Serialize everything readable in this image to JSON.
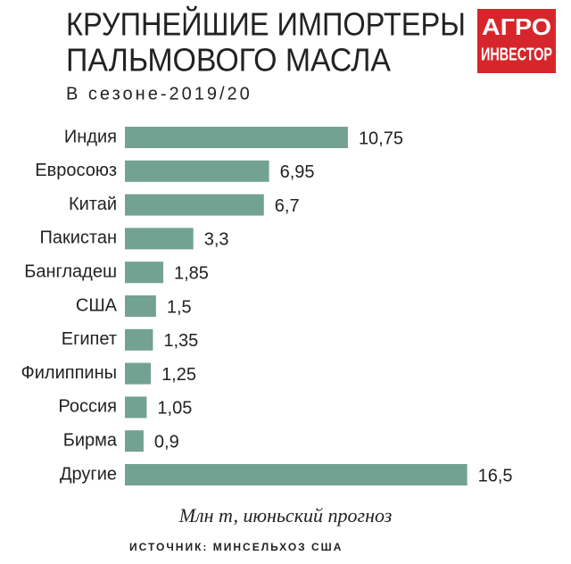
{
  "chart_data": {
    "type": "hbar",
    "title": [
      "КРУПНЕЙШИЕ ИМПОРТЕРЫ",
      "ПАЛЬМОВОГО МАСЛА"
    ],
    "subtitle": "В сезоне-2019/20",
    "categories": [
      "Индия",
      "Евросоюз",
      "Китай",
      "Пакистан",
      "Бангладеш",
      "США",
      "Египет",
      "Филиппины",
      "Россия",
      "Бирма",
      "Другие"
    ],
    "values": [
      10.75,
      6.95,
      6.7,
      3.3,
      1.85,
      1.5,
      1.35,
      1.25,
      1.05,
      0.9,
      16.5
    ],
    "value_labels": [
      "10,75",
      "6,95",
      "6,7",
      "3,3",
      "1,85",
      "1,5",
      "1,35",
      "1,25",
      "1,05",
      "0,9",
      "16,5"
    ],
    "color": "#73a292",
    "unit_note": "Млн т, июньский прогноз",
    "source": "ИСТОЧНИК: МИНСЕЛЬХОЗ США"
  },
  "logo": [
    "АГРО",
    "ИНВЕСТОР"
  ]
}
